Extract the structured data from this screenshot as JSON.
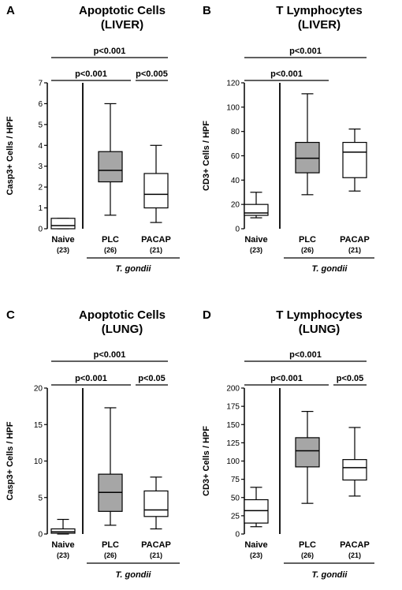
{
  "chart_data": [
    {
      "type": "box",
      "panel": "A",
      "title_line1": "Apoptotic Cells",
      "title_line2": "(LIVER)",
      "ylabel": "Casp3+ Cells / HPF",
      "ylim": [
        0,
        7
      ],
      "yticks": [
        0,
        1,
        2,
        3,
        4,
        5,
        6,
        7
      ],
      "categories": [
        {
          "name": "Naive",
          "n": "(23)",
          "fill": "#ffffff",
          "min": 0.0,
          "q1": 0.0,
          "median": 0.15,
          "q3": 0.5,
          "max": 0.5
        },
        {
          "name": "PLC",
          "n": "(26)",
          "fill": "#a6a6a6",
          "min": 0.65,
          "q1": 2.25,
          "median": 2.8,
          "q3": 3.7,
          "max": 6.0
        },
        {
          "name": "PACAP",
          "n": "(21)",
          "fill": "#ffffff",
          "min": 0.3,
          "q1": 1.0,
          "median": 1.65,
          "q3": 2.65,
          "max": 4.0
        }
      ],
      "group_label": "T. gondii",
      "significance": [
        {
          "label": "p<0.001",
          "from": 0,
          "to": 2
        },
        {
          "label": "p<0.001",
          "from": 0,
          "to": 1
        },
        {
          "label": "p<0.005",
          "from": 1,
          "to": 2
        }
      ]
    },
    {
      "type": "box",
      "panel": "B",
      "title_line1": "T Lymphocytes",
      "title_line2": "(LIVER)",
      "ylabel": "CD3+ Cells / HPF",
      "ylim": [
        0,
        120
      ],
      "yticks": [
        0,
        20,
        40,
        60,
        80,
        100,
        120
      ],
      "categories": [
        {
          "name": "Naive",
          "n": "(23)",
          "fill": "#ffffff",
          "min": 9,
          "q1": 11,
          "median": 13,
          "q3": 20,
          "max": 30
        },
        {
          "name": "PLC",
          "n": "(26)",
          "fill": "#a6a6a6",
          "min": 28,
          "q1": 46,
          "median": 58,
          "q3": 71,
          "max": 111
        },
        {
          "name": "PACAP",
          "n": "(21)",
          "fill": "#ffffff",
          "min": 31,
          "q1": 42,
          "median": 63,
          "q3": 71,
          "max": 82
        }
      ],
      "group_label": "T. gondii",
      "significance": [
        {
          "label": "p<0.001",
          "from": 0,
          "to": 2
        },
        {
          "label": "p<0.001",
          "from": 0,
          "to": 1
        }
      ]
    },
    {
      "type": "box",
      "panel": "C",
      "title_line1": "Apoptotic Cells",
      "title_line2": "(LUNG)",
      "ylabel": "Casp3+ Cells / HPF",
      "ylim": [
        0,
        20
      ],
      "yticks": [
        0,
        5,
        10,
        15,
        20
      ],
      "categories": [
        {
          "name": "Naive",
          "n": "(23)",
          "fill": "#ffffff",
          "min": 0.0,
          "q1": 0.1,
          "median": 0.3,
          "q3": 0.7,
          "max": 2.0
        },
        {
          "name": "PLC",
          "n": "(26)",
          "fill": "#a6a6a6",
          "min": 1.2,
          "q1": 3.1,
          "median": 5.7,
          "q3": 8.2,
          "max": 17.3
        },
        {
          "name": "PACAP",
          "n": "(21)",
          "fill": "#ffffff",
          "min": 0.7,
          "q1": 2.4,
          "median": 3.3,
          "q3": 5.9,
          "max": 7.8
        }
      ],
      "group_label": "T. gondii",
      "significance": [
        {
          "label": "p<0.001",
          "from": 0,
          "to": 2
        },
        {
          "label": "p<0.001",
          "from": 0,
          "to": 1
        },
        {
          "label": "p<0.05",
          "from": 1,
          "to": 2
        }
      ]
    },
    {
      "type": "box",
      "panel": "D",
      "title_line1": "T Lymphocytes",
      "title_line2": "(LUNG)",
      "ylabel": "CD3+ Cells / HPF",
      "ylim": [
        0,
        200
      ],
      "yticks": [
        0,
        25,
        50,
        75,
        100,
        125,
        150,
        175,
        200
      ],
      "categories": [
        {
          "name": "Naive",
          "n": "(23)",
          "fill": "#ffffff",
          "min": 10,
          "q1": 15,
          "median": 32,
          "q3": 47,
          "max": 64
        },
        {
          "name": "PLC",
          "n": "(26)",
          "fill": "#a6a6a6",
          "min": 42,
          "q1": 92,
          "median": 114,
          "q3": 132,
          "max": 168
        },
        {
          "name": "PACAP",
          "n": "(21)",
          "fill": "#ffffff",
          "min": 52,
          "q1": 74,
          "median": 91,
          "q3": 102,
          "max": 146
        }
      ],
      "group_label": "T. gondii",
      "significance": [
        {
          "label": "p<0.001",
          "from": 0,
          "to": 2
        },
        {
          "label": "p<0.001",
          "from": 0,
          "to": 1
        },
        {
          "label": "p<0.05",
          "from": 1,
          "to": 2
        }
      ]
    }
  ]
}
